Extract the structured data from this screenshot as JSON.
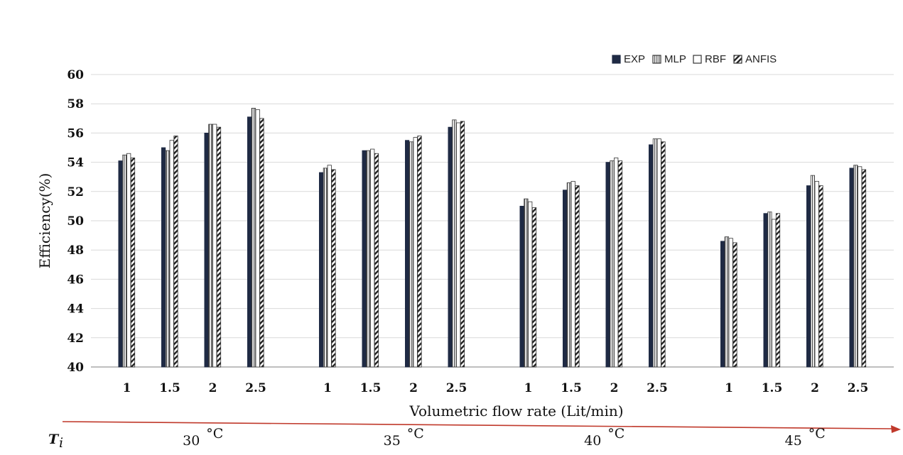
{
  "chart_data": {
    "type": "bar",
    "title": "",
    "xlabel": "Volumetric flow rate (Lit/min)",
    "ylabel": "Efficiency(%)",
    "ylim": [
      40,
      60
    ],
    "yticks": [
      40,
      42,
      44,
      46,
      48,
      50,
      52,
      54,
      56,
      58,
      60
    ],
    "grid": "horizontal",
    "legend_position": "top-right",
    "group_axis_label": "T",
    "group_axis_label_sub": "i",
    "groups": [
      {
        "label": "30",
        "unit": "°C",
        "categories": [
          "1",
          "1.5",
          "2",
          "2.5"
        ]
      },
      {
        "label": "35",
        "unit": "°C",
        "categories": [
          "1",
          "1.5",
          "2",
          "2.5"
        ]
      },
      {
        "label": "40",
        "unit": "°C",
        "categories": [
          "1",
          "1.5",
          "2",
          "2.5"
        ]
      },
      {
        "label": "45",
        "unit": "°C",
        "categories": [
          "1",
          "1.5",
          "2",
          "2.5"
        ]
      }
    ],
    "series": [
      {
        "name": "EXP",
        "pattern": "solid",
        "color": "#1f2a44",
        "values": [
          54.1,
          55.0,
          56.0,
          57.1,
          53.3,
          54.8,
          55.5,
          56.4,
          51.0,
          52.1,
          54.0,
          55.2,
          48.6,
          50.5,
          52.4,
          53.6
        ]
      },
      {
        "name": "MLP",
        "pattern": "vertical-lines",
        "color": "#555555",
        "values": [
          54.5,
          54.8,
          56.6,
          57.7,
          53.6,
          54.8,
          55.4,
          56.9,
          51.5,
          52.6,
          54.1,
          55.6,
          48.9,
          50.6,
          53.1,
          53.8
        ]
      },
      {
        "name": "RBF",
        "pattern": "empty",
        "color": "#555555",
        "values": [
          54.6,
          55.5,
          56.6,
          57.6,
          53.8,
          54.9,
          55.7,
          56.7,
          51.3,
          52.7,
          54.3,
          55.6,
          48.8,
          50.1,
          52.7,
          53.7
        ]
      },
      {
        "name": "ANFIS",
        "pattern": "diagonal",
        "color": "#222222",
        "values": [
          54.3,
          55.8,
          56.4,
          57.0,
          53.5,
          54.6,
          55.8,
          56.8,
          50.9,
          52.4,
          54.1,
          55.4,
          48.5,
          50.5,
          52.4,
          53.5
        ]
      }
    ]
  }
}
